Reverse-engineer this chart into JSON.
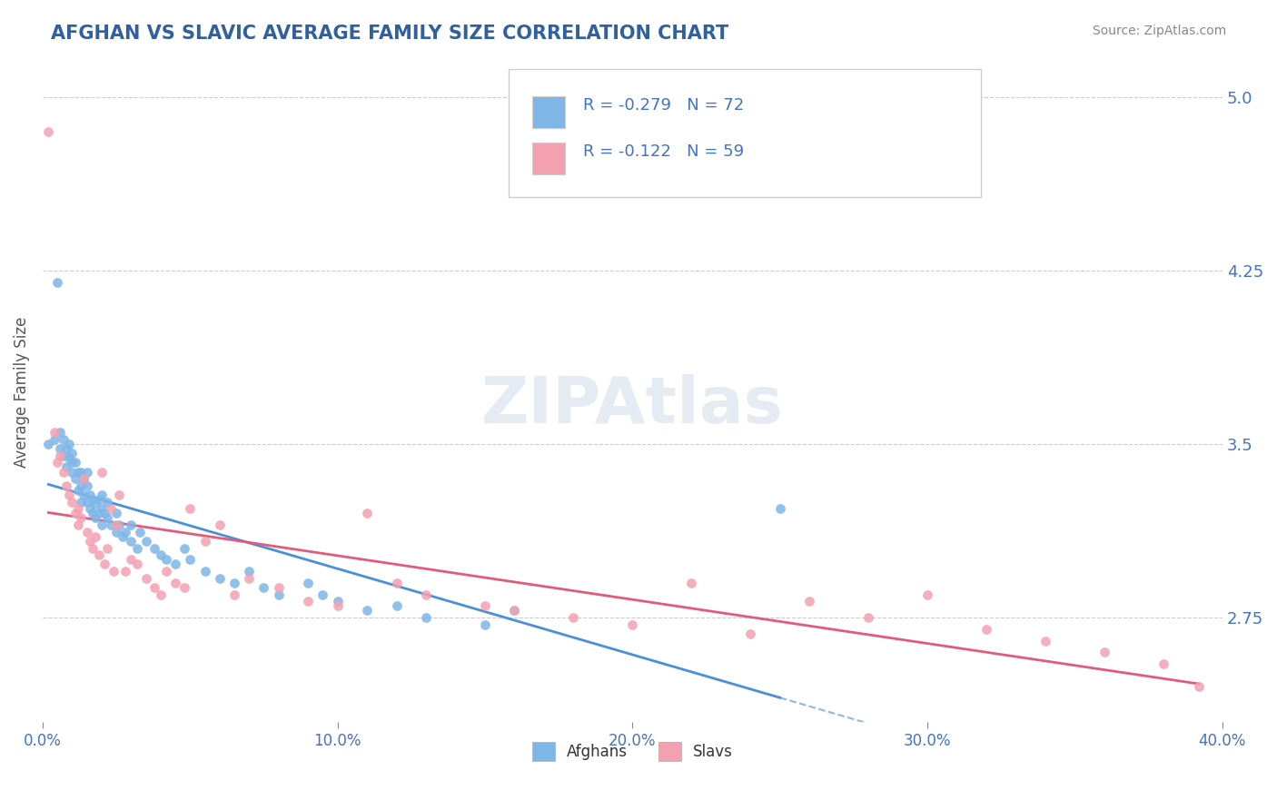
{
  "title": "AFGHAN VS SLAVIC AVERAGE FAMILY SIZE CORRELATION CHART",
  "source_text": "Source: ZipAtlas.com",
  "xlabel": "",
  "ylabel": "Average Family Size",
  "xlim": [
    0.0,
    0.4
  ],
  "ylim": [
    2.3,
    5.15
  ],
  "yticks": [
    2.75,
    3.5,
    4.25,
    5.0
  ],
  "xticks": [
    0.0,
    0.1,
    0.2,
    0.3,
    0.4
  ],
  "xtick_labels": [
    "0.0%",
    "10.0%",
    "20.0%",
    "30.0%",
    "40.0%"
  ],
  "afghan_color": "#7EB6E8",
  "slav_color": "#F4A0B0",
  "afghan_line_color": "#4A90D9",
  "slav_line_color": "#E05C7A",
  "dashed_line_color": "#90B8D8",
  "legend_r_afghan": "R = -0.279",
  "legend_n_afghan": "N = 72",
  "legend_r_slav": "R = -0.122",
  "legend_n_slav": "N = 59",
  "watermark": "ZIPAtlas",
  "background_color": "#FFFFFF",
  "grid_color": "#CCCCCC",
  "title_color": "#3060A0",
  "axis_label_color": "#555555",
  "tick_color": "#4472C4",
  "afghans_x": [
    0.002,
    0.004,
    0.005,
    0.006,
    0.006,
    0.007,
    0.007,
    0.008,
    0.008,
    0.009,
    0.009,
    0.01,
    0.01,
    0.01,
    0.011,
    0.011,
    0.012,
    0.012,
    0.013,
    0.013,
    0.013,
    0.014,
    0.014,
    0.015,
    0.015,
    0.015,
    0.016,
    0.016,
    0.017,
    0.017,
    0.018,
    0.018,
    0.019,
    0.019,
    0.02,
    0.02,
    0.02,
    0.021,
    0.022,
    0.022,
    0.023,
    0.025,
    0.025,
    0.026,
    0.027,
    0.028,
    0.03,
    0.03,
    0.032,
    0.033,
    0.035,
    0.038,
    0.04,
    0.042,
    0.045,
    0.048,
    0.05,
    0.055,
    0.06,
    0.065,
    0.07,
    0.075,
    0.08,
    0.09,
    0.095,
    0.1,
    0.11,
    0.12,
    0.13,
    0.15,
    0.16,
    0.25
  ],
  "afghans_y": [
    3.5,
    3.52,
    4.2,
    3.48,
    3.55,
    3.45,
    3.52,
    3.4,
    3.48,
    3.44,
    3.5,
    3.38,
    3.42,
    3.46,
    3.35,
    3.42,
    3.3,
    3.38,
    3.25,
    3.32,
    3.38,
    3.28,
    3.35,
    3.25,
    3.32,
    3.38,
    3.22,
    3.28,
    3.2,
    3.26,
    3.18,
    3.24,
    3.2,
    3.26,
    3.15,
    3.22,
    3.28,
    3.2,
    3.18,
    3.25,
    3.15,
    3.12,
    3.2,
    3.15,
    3.1,
    3.12,
    3.08,
    3.15,
    3.05,
    3.12,
    3.08,
    3.05,
    3.02,
    3.0,
    2.98,
    3.05,
    3.0,
    2.95,
    2.92,
    2.9,
    2.95,
    2.88,
    2.85,
    2.9,
    2.85,
    2.82,
    2.78,
    2.8,
    2.75,
    2.72,
    2.78,
    3.22
  ],
  "slavs_x": [
    0.002,
    0.004,
    0.005,
    0.006,
    0.007,
    0.008,
    0.009,
    0.01,
    0.011,
    0.012,
    0.012,
    0.013,
    0.014,
    0.015,
    0.016,
    0.017,
    0.018,
    0.019,
    0.02,
    0.021,
    0.022,
    0.023,
    0.024,
    0.025,
    0.026,
    0.028,
    0.03,
    0.032,
    0.035,
    0.038,
    0.04,
    0.042,
    0.045,
    0.048,
    0.05,
    0.055,
    0.06,
    0.065,
    0.07,
    0.08,
    0.09,
    0.1,
    0.11,
    0.12,
    0.13,
    0.15,
    0.16,
    0.18,
    0.2,
    0.22,
    0.24,
    0.26,
    0.28,
    0.3,
    0.32,
    0.34,
    0.36,
    0.38,
    0.392
  ],
  "slavs_y": [
    4.85,
    3.55,
    3.42,
    3.45,
    3.38,
    3.32,
    3.28,
    3.25,
    3.2,
    3.15,
    3.22,
    3.18,
    3.35,
    3.12,
    3.08,
    3.05,
    3.1,
    3.02,
    3.38,
    2.98,
    3.05,
    3.22,
    2.95,
    3.15,
    3.28,
    2.95,
    3.0,
    2.98,
    2.92,
    2.88,
    2.85,
    2.95,
    2.9,
    2.88,
    3.22,
    3.08,
    3.15,
    2.85,
    2.92,
    2.88,
    2.82,
    2.8,
    3.2,
    2.9,
    2.85,
    2.8,
    2.78,
    2.75,
    2.72,
    2.9,
    2.68,
    2.82,
    2.75,
    2.85,
    2.7,
    2.65,
    2.6,
    2.55,
    2.45
  ]
}
